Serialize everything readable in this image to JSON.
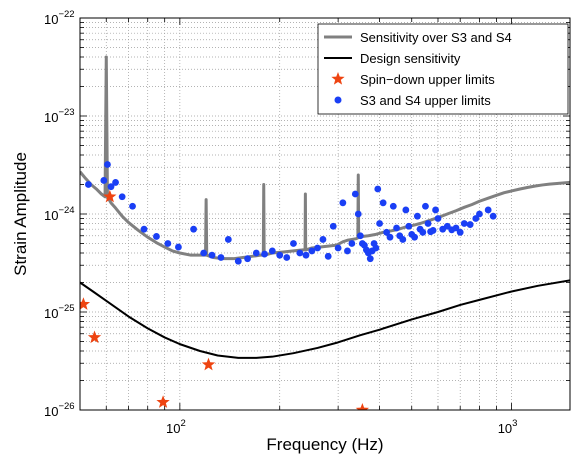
{
  "chart_data": {
    "type": "line",
    "xlabel": "Frequency (Hz)",
    "ylabel": "Strain Amplitude",
    "xscale": "log",
    "yscale": "log",
    "xlim": [
      50,
      1500
    ],
    "ylim": [
      1e-26,
      1e-22
    ],
    "grid": true,
    "legend_placement": "top-right",
    "x_tick_labels": [
      {
        "value": 100,
        "base": "10",
        "exp": "2"
      },
      {
        "value": 1000,
        "base": "10",
        "exp": "3"
      }
    ],
    "y_tick_labels": [
      {
        "value": 1e-22,
        "base": "10",
        "exp": "−22"
      },
      {
        "value": 1e-23,
        "base": "10",
        "exp": "−23"
      },
      {
        "value": 1e-24,
        "base": "10",
        "exp": "−24"
      },
      {
        "value": 1e-25,
        "base": "10",
        "exp": "−25"
      },
      {
        "value": 1e-26,
        "base": "10",
        "exp": "−26"
      }
    ],
    "series": [
      {
        "name": "Sensitivity over S3 and S4",
        "kind": "line",
        "color": "#808080",
        "x": [
          50,
          52,
          54,
          56,
          58,
          59.5,
          60,
          60.5,
          62,
          64,
          67,
          70,
          75,
          80,
          85,
          90,
          95,
          100,
          108,
          115,
          119.5,
          120,
          120.5,
          126,
          135,
          145,
          155,
          165,
          175,
          178.5,
          179,
          179.5,
          190,
          205,
          220,
          235,
          238.5,
          239,
          239.5,
          250,
          265,
          280,
          295,
          300,
          310,
          320,
          330,
          340,
          344,
          345,
          346,
          355,
          370,
          390,
          410,
          430,
          450,
          475,
          500,
          530,
          560,
          600,
          640,
          680,
          720,
          760,
          800,
          850,
          900,
          950,
          1000,
          1060,
          1120,
          1180,
          1240,
          1300,
          1370,
          1440,
          1500
        ],
        "y": [
          2.7e-24,
          2.3e-24,
          2e-24,
          1.8e-24,
          1.6e-24,
          1.5e-24,
          4e-23,
          1.5e-24,
          1.3e-24,
          1.15e-24,
          9.5e-25,
          8.2e-25,
          6.8e-25,
          5.8e-25,
          5.1e-25,
          4.6e-25,
          4.2e-25,
          4e-25,
          3.8e-25,
          3.8e-25,
          3.8e-25,
          1.4e-24,
          3.8e-25,
          3.6e-25,
          3.5e-25,
          3.5e-25,
          3.6e-25,
          3.7e-25,
          3.8e-25,
          3.8e-25,
          2e-24,
          3.8e-25,
          4e-25,
          4.1e-25,
          4.2e-25,
          4.3e-25,
          4.3e-25,
          1.6e-24,
          4.3e-25,
          4.5e-25,
          4.6e-25,
          4.7e-25,
          4.8e-25,
          4.9e-25,
          5.2e-25,
          5.4e-25,
          5.5e-25,
          5.6e-25,
          5.7e-25,
          2.5e-24,
          5.8e-25,
          5.9e-25,
          6e-25,
          6.2e-25,
          6.5e-25,
          6.7e-25,
          6.9e-25,
          7.3e-25,
          7.6e-25,
          8e-25,
          8.5e-25,
          9.2e-25,
          1e-24,
          1.08e-24,
          1.17e-24,
          1.25e-24,
          1.35e-24,
          1.45e-24,
          1.55e-24,
          1.65e-24,
          1.72e-24,
          1.8e-24,
          1.87e-24,
          1.93e-24,
          1.98e-24,
          2.02e-24,
          2.05e-24,
          2.08e-24,
          2.1e-24
        ]
      },
      {
        "name": "Design sensitivity",
        "kind": "line",
        "color": "#000000",
        "x": [
          50,
          55,
          60,
          70,
          80,
          90,
          100,
          115,
          130,
          150,
          170,
          190,
          220,
          260,
          300,
          350,
          400,
          500,
          600,
          700,
          800,
          1000,
          1200,
          1500
        ],
        "y": [
          2e-25,
          1.6e-25,
          1.3e-25,
          9e-26,
          6.8e-26,
          5.5e-26,
          4.7e-26,
          4e-26,
          3.6e-26,
          3.4e-26,
          3.4e-26,
          3.5e-26,
          3.8e-26,
          4.3e-26,
          4.9e-26,
          5.8e-26,
          6.6e-26,
          8.4e-26,
          1e-25,
          1.18e-25,
          1.33e-25,
          1.62e-25,
          1.85e-25,
          2.1e-25
        ]
      },
      {
        "name": "Spin−down upper limits",
        "kind": "star",
        "color": "#ee4411",
        "x": [
          51.2,
          55.3,
          61.5,
          89.0,
          122.0,
          355.0
        ],
        "y": [
          1.2e-25,
          5.5e-26,
          1.5e-24,
          1.2e-26,
          2.9e-26,
          1e-26
        ]
      },
      {
        "name": "S3 and S4 upper limits",
        "kind": "dot",
        "color": "#1a3ff5",
        "x": [
          53,
          59,
          60.5,
          62,
          64,
          67,
          72,
          78,
          85,
          92,
          99,
          110,
          118,
          125,
          133,
          140,
          150,
          160,
          170,
          180,
          190,
          200,
          210,
          220,
          230,
          240,
          250,
          260,
          270,
          280,
          290,
          300,
          310,
          320,
          330,
          338,
          345,
          350,
          355,
          360,
          365,
          370,
          375,
          380,
          385,
          390,
          395,
          400,
          410,
          420,
          430,
          440,
          450,
          460,
          470,
          480,
          490,
          500,
          510,
          520,
          530,
          540,
          550,
          560,
          570,
          580,
          590,
          600,
          620,
          640,
          660,
          680,
          700,
          720,
          750,
          780,
          800,
          850,
          880
        ],
        "y": [
          2e-24,
          2.2e-24,
          3.2e-24,
          1.9e-24,
          2.1e-24,
          1.5e-24,
          1.2e-24,
          7e-25,
          5.9e-25,
          5e-25,
          4.6e-25,
          7e-25,
          4e-25,
          3.8e-25,
          3.6e-25,
          5.5e-25,
          3.3e-25,
          3.5e-25,
          4e-25,
          3.9e-25,
          4.2e-25,
          3.8e-25,
          3.6e-25,
          5e-25,
          4e-25,
          3.8e-25,
          4.2e-25,
          4.5e-25,
          5.5e-25,
          3.7e-25,
          7.5e-25,
          4.5e-25,
          1.3e-24,
          4.2e-25,
          5e-25,
          1.6e-24,
          1e-24,
          6e-25,
          5e-25,
          4.8e-25,
          4.3e-25,
          4e-25,
          3.5e-25,
          4.2e-25,
          5e-25,
          4.5e-25,
          1.8e-24,
          8e-25,
          1.3e-24,
          6.5e-25,
          5.8e-25,
          1.2e-24,
          7.2e-25,
          6e-25,
          5.5e-25,
          1.1e-24,
          7.5e-25,
          6.2e-25,
          5.8e-25,
          9.5e-25,
          7e-25,
          6.5e-25,
          1.2e-24,
          8e-25,
          6.6e-25,
          6.8e-25,
          1.1e-24,
          9e-25,
          7e-25,
          7.5e-25,
          6.9e-25,
          7.2e-25,
          6.5e-25,
          8e-25,
          7.8e-25,
          9e-25,
          1e-24,
          1.1e-24,
          9.5e-25
        ]
      }
    ]
  }
}
